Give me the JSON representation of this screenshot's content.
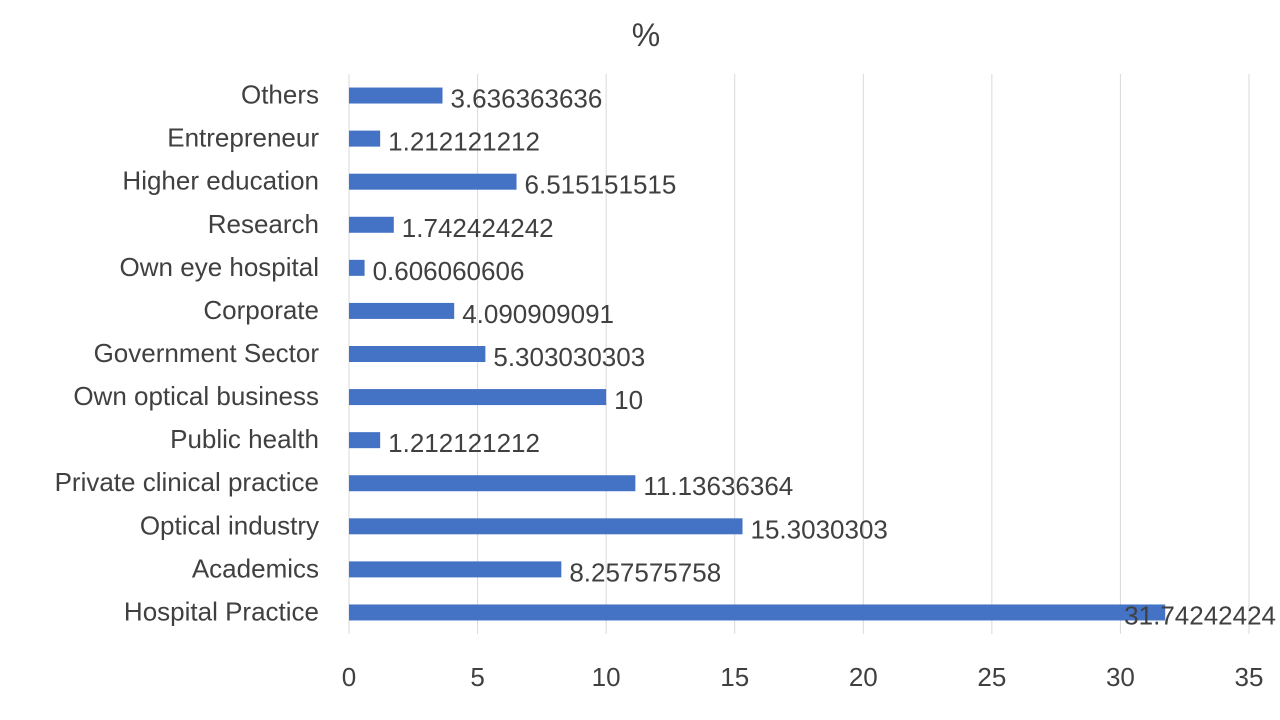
{
  "chart_data": {
    "type": "bar",
    "orientation": "horizontal",
    "title": "%",
    "categories": [
      "Hospital Practice",
      "Academics",
      "Optical industry",
      "Private clinical practice",
      "Public health",
      "Own optical business",
      "Government Sector",
      "Corporate",
      "Own eye hospital",
      "Research",
      "Higher education",
      "Entrepreneur",
      "Others"
    ],
    "values": [
      31.74242424,
      8.257575758,
      15.3030303,
      11.13636364,
      1.212121212,
      10,
      5.303030303,
      4.090909091,
      0.606060606,
      1.742424242,
      6.515151515,
      1.212121212,
      3.636363636
    ],
    "value_labels": [
      "31.74242424",
      "8.257575758",
      "15.3030303",
      "11.13636364",
      "1.212121212",
      "10",
      "5.303030303",
      "4.090909091",
      "0.606060606",
      "1.742424242",
      "6.515151515",
      "1.212121212",
      "3.636363636"
    ],
    "xlim": [
      0,
      35
    ],
    "xticks": [
      "0",
      "5",
      "10",
      "15",
      "20",
      "25",
      "30",
      "35"
    ],
    "grid": true,
    "legend": "none",
    "bar_color": "#4472c4",
    "grid_color": "#d9d9d9",
    "text_color": "#404040"
  }
}
